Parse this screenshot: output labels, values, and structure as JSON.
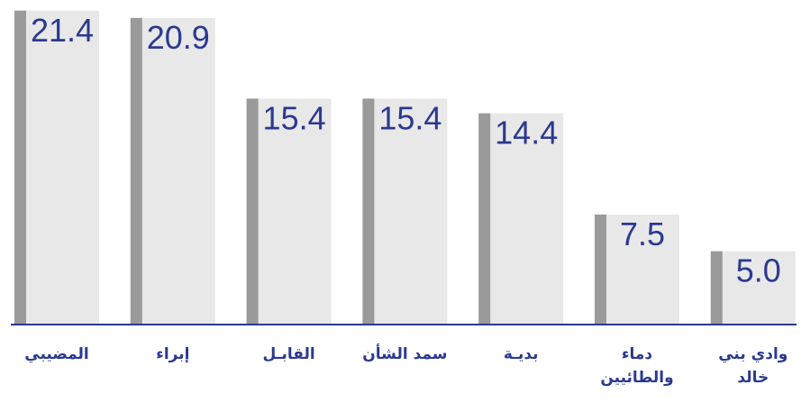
{
  "chart_data": {
    "type": "bar",
    "categories": [
      "المضيبي",
      "إبراء",
      "القابـل",
      "سمد الشأن",
      "بديـة",
      "دماء والطائيين",
      "وادي بني خالد"
    ],
    "values": [
      21.4,
      20.9,
      15.4,
      15.4,
      14.4,
      7.5,
      5.0
    ],
    "value_labels": [
      "21.4",
      "20.9",
      "15.4",
      "15.4",
      "14.4",
      "7.5",
      "5.0"
    ],
    "color": "#e8e8e8",
    "accent_color": "#9a9a9a",
    "label_color": "#2b3990",
    "ylim": [
      0,
      22
    ]
  }
}
